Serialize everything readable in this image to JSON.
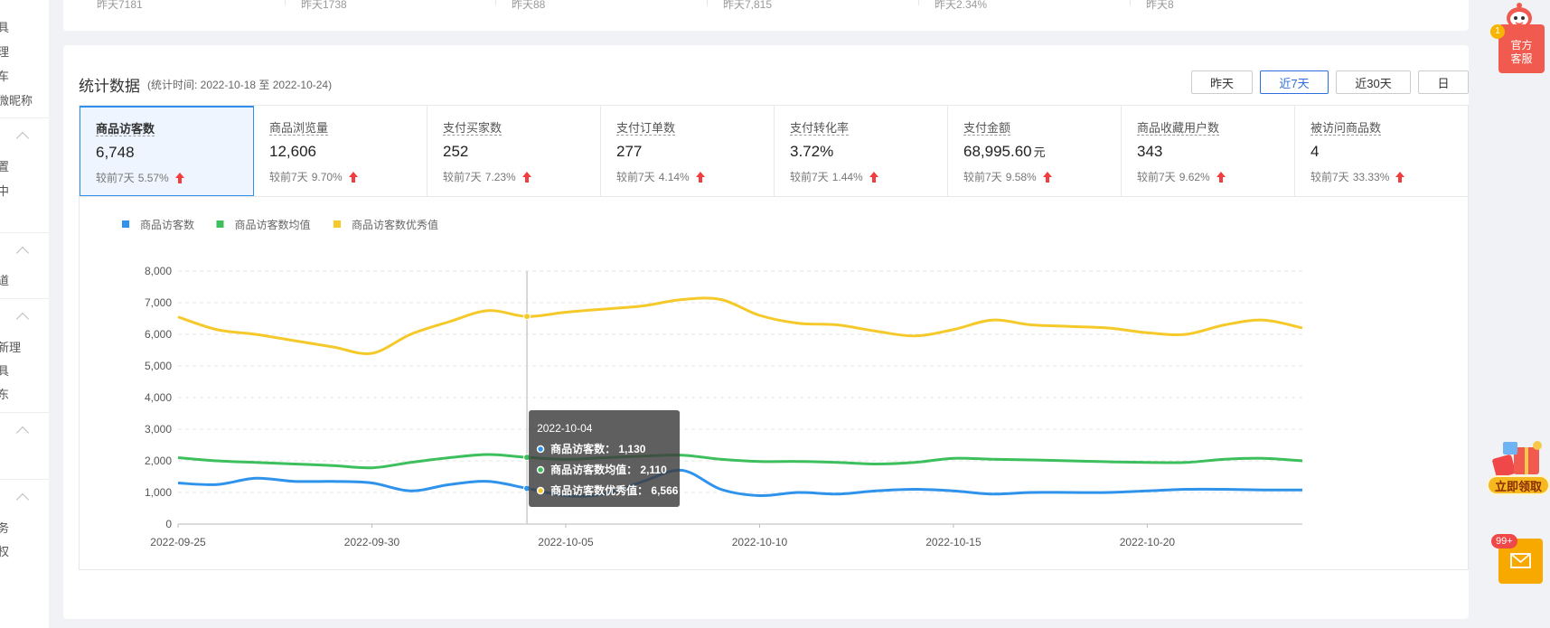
{
  "sidebar": {
    "items": [
      "具",
      "理",
      "车",
      "微昵称",
      "置",
      "中",
      "道",
      "新理",
      "具",
      "东",
      "务",
      "权"
    ]
  },
  "top_stats": [
    "昨天7181",
    "昨天1738",
    "昨天88",
    "昨天7,815",
    "昨天2.34%",
    "昨天8"
  ],
  "header": {
    "title": "统计数据",
    "period": "(统计时间: 2022-10-18 至 2022-10-24)",
    "buttons": [
      "昨天",
      "近7天",
      "近30天",
      "日"
    ],
    "active_button": "近7天"
  },
  "metrics": [
    {
      "label": "商品访客数",
      "value": "6,748",
      "unit": "",
      "cmp_label": "较前7天",
      "cmp": "5.57%"
    },
    {
      "label": "商品浏览量",
      "value": "12,606",
      "unit": "",
      "cmp_label": "较前7天",
      "cmp": "9.70%"
    },
    {
      "label": "支付买家数",
      "value": "252",
      "unit": "",
      "cmp_label": "较前7天",
      "cmp": "7.23%"
    },
    {
      "label": "支付订单数",
      "value": "277",
      "unit": "",
      "cmp_label": "较前7天",
      "cmp": "4.14%"
    },
    {
      "label": "支付转化率",
      "value": "3.72%",
      "unit": "",
      "cmp_label": "较前7天",
      "cmp": "1.44%"
    },
    {
      "label": "支付金额",
      "value": "68,995.60",
      "unit": "元",
      "cmp_label": "较前7天",
      "cmp": "9.58%"
    },
    {
      "label": "商品收藏用户数",
      "value": "343",
      "unit": "",
      "cmp_label": "较前7天",
      "cmp": "9.62%"
    },
    {
      "label": "被访问商品数",
      "value": "4",
      "unit": "",
      "cmp_label": "较前7天",
      "cmp": "33.33%"
    }
  ],
  "colors": {
    "accent": "#2f6ee0",
    "up_arrow": "#f03e3e",
    "blue": "#2f93ec",
    "green": "#3cbf5c",
    "yellow": "#f5c92a"
  },
  "chart_data": {
    "type": "line",
    "legend": [
      "商品访客数",
      "商品访客数均值",
      "商品访客数优秀值"
    ],
    "legend_placement": "top-left",
    "grid": true,
    "ylim": [
      0,
      8000
    ],
    "yticks": [
      "8,000",
      "7,000",
      "6,000",
      "5,000",
      "4,000",
      "3,000",
      "2,000",
      "1,000",
      "0"
    ],
    "xtick_labels": [
      "2022-09-25",
      "2022-09-30",
      "2022-10-05",
      "2022-10-10",
      "2022-10-15",
      "2022-10-20"
    ],
    "x": [
      "2022-09-25",
      "2022-09-26",
      "2022-09-27",
      "2022-09-28",
      "2022-09-29",
      "2022-09-30",
      "2022-10-01",
      "2022-10-02",
      "2022-10-03",
      "2022-10-04",
      "2022-10-05",
      "2022-10-06",
      "2022-10-07",
      "2022-10-08",
      "2022-10-09",
      "2022-10-10",
      "2022-10-11",
      "2022-10-12",
      "2022-10-13",
      "2022-10-14",
      "2022-10-15",
      "2022-10-16",
      "2022-10-17",
      "2022-10-18",
      "2022-10-19",
      "2022-10-20",
      "2022-10-21",
      "2022-10-22",
      "2022-10-23",
      "2022-10-24"
    ],
    "series": [
      {
        "name": "商品访客数",
        "values": [
          1300,
          1250,
          1450,
          1350,
          1350,
          1300,
          1050,
          1250,
          1350,
          1130,
          900,
          950,
          1350,
          1700,
          1100,
          900,
          1000,
          950,
          1050,
          1100,
          1050,
          950,
          1000,
          1000,
          1000,
          1050,
          1100,
          1100,
          1080,
          1080
        ]
      },
      {
        "name": "商品访客数均值",
        "values": [
          2100,
          2000,
          1950,
          1900,
          1850,
          1780,
          1950,
          2100,
          2200,
          2110,
          2050,
          2100,
          2150,
          2180,
          2050,
          1980,
          1980,
          1950,
          1900,
          1950,
          2080,
          2050,
          2030,
          2000,
          1970,
          1950,
          1950,
          2050,
          2080,
          2000
        ]
      },
      {
        "name": "商品访客数优秀值",
        "values": [
          6550,
          6150,
          6000,
          5800,
          5600,
          5400,
          6000,
          6400,
          6750,
          6566,
          6700,
          6800,
          6900,
          7100,
          7100,
          6600,
          6350,
          6300,
          6100,
          5950,
          6150,
          6450,
          6300,
          6250,
          6200,
          6050,
          6000,
          6300,
          6450,
          6200
        ]
      }
    ],
    "tooltip": {
      "date": "2022-10-04",
      "rows": [
        {
          "label": "商品访客数",
          "value": "1,130"
        },
        {
          "label": "商品访客数均值",
          "value": "2,110"
        },
        {
          "label": "商品访客数优秀值",
          "value": "6,566"
        }
      ]
    }
  },
  "widgets": {
    "service_label": "官方客服",
    "service_badge": "1",
    "gift_label": "立即领取",
    "mail_badge": "99+",
    "icons": [
      "robot-icon",
      "gift-icon",
      "mail-icon"
    ]
  }
}
